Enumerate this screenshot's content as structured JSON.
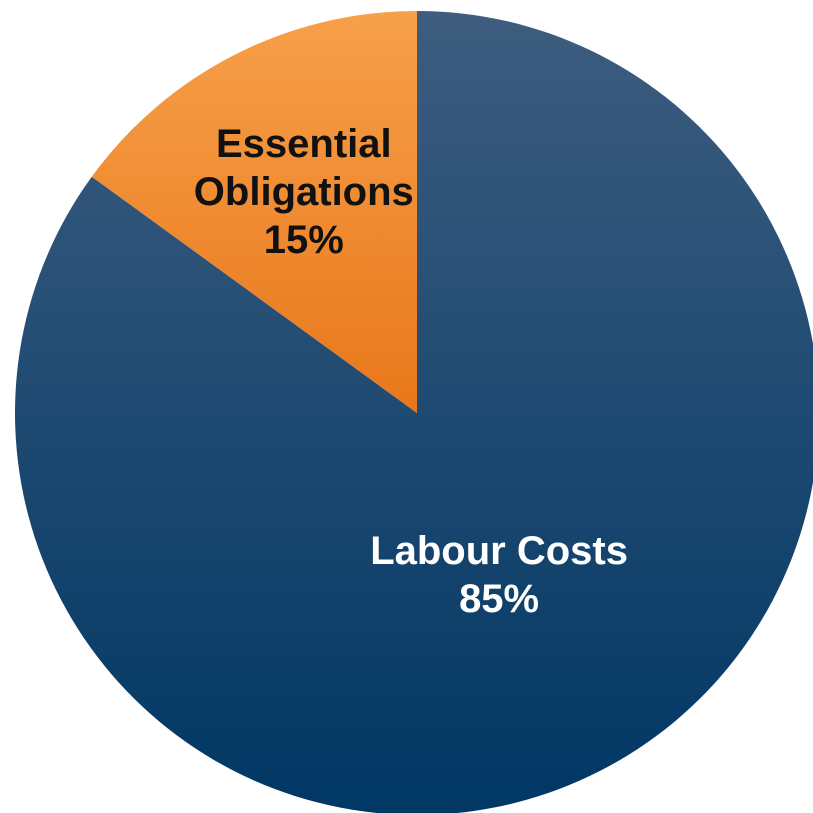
{
  "chart_data": {
    "type": "pie",
    "title": "",
    "start_angle_deg": 0,
    "direction": "clockwise",
    "slices": [
      {
        "label_lines": [
          "Labour Costs"
        ],
        "value": 85,
        "value_label": "85%",
        "color_top": "#3e5d7f",
        "color_bottom": "#003764",
        "label_color": "#ffffff"
      },
      {
        "label_lines": [
          "Essential",
          "Obligations"
        ],
        "value": 15,
        "value_label": "15%",
        "color_top": "#f7a04a",
        "color_bottom": "#e8771a",
        "label_color": "#111111"
      }
    ],
    "legend": "none"
  }
}
